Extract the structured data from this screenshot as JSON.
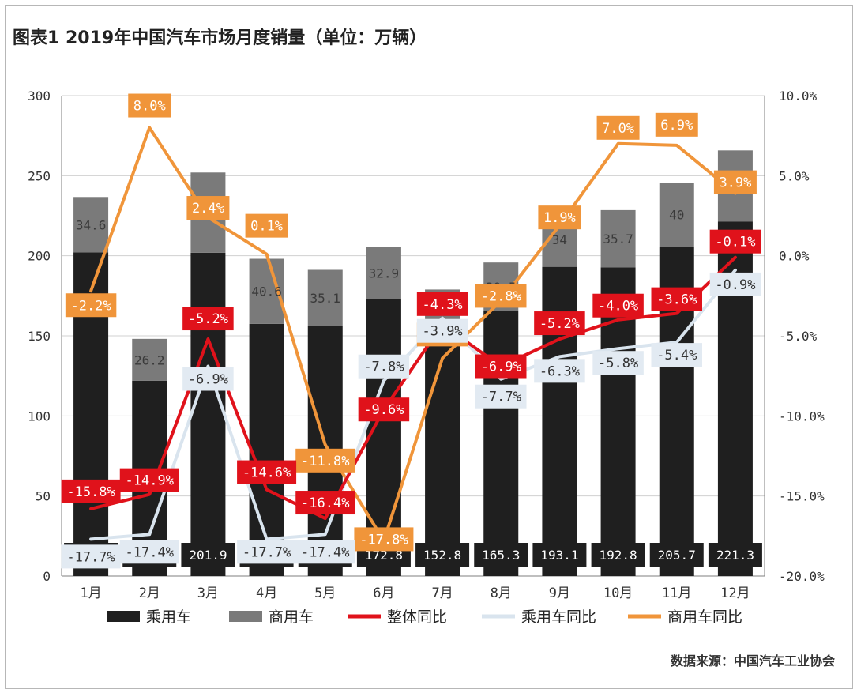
{
  "title": "图表1  2019年中国汽车市场月度销量（单位：万辆）",
  "source": "数据来源：中国汽车工业协会",
  "chart_data": {
    "type": "bar",
    "stacked": true,
    "categories": [
      "1月",
      "2月",
      "3月",
      "4月",
      "5月",
      "6月",
      "7月",
      "8月",
      "9月",
      "10月",
      "11月",
      "12月"
    ],
    "series": [
      {
        "name": "乘用车",
        "type": "bar",
        "axis": "left",
        "color": "#1f1f1f",
        "values": [
          202.1,
          121.9,
          201.9,
          157.5,
          156.1,
          172.8,
          152.8,
          165.3,
          193.1,
          192.8,
          205.7,
          221.3
        ],
        "labels": [
          "202.1",
          "121.9",
          "201.9",
          "157.5",
          "156.1",
          "172.8",
          "152.8",
          "165.3",
          "193.1",
          "192.8",
          "205.7",
          "221.3"
        ]
      },
      {
        "name": "商用车",
        "type": "bar",
        "axis": "left",
        "color": "#7a7a7a",
        "values": [
          34.6,
          26.2,
          50.1,
          40.6,
          35.1,
          32.9,
          26.1,
          30.5,
          34,
          35.7,
          40,
          44.5
        ],
        "labels": [
          "34.6",
          "26.2",
          "50.1",
          "40.6",
          "35.1",
          "32.9",
          "26.1",
          "30.5",
          "34",
          "35.7",
          "40",
          "44.5"
        ]
      },
      {
        "name": "整体同比",
        "type": "line",
        "axis": "right",
        "color": "#e0121b",
        "values": [
          -15.8,
          -14.9,
          -5.2,
          -14.6,
          -16.4,
          -9.6,
          -4.3,
          -6.9,
          -5.2,
          -4.0,
          -3.6,
          -0.1
        ],
        "labels": [
          "-15.8%",
          "-14.9%",
          "-5.2%",
          "-14.6%",
          "-16.4%",
          "-9.6%",
          "-4.3%",
          "-6.9%",
          "-5.2%",
          "-4.0%",
          "-3.6%",
          "-0.1%"
        ]
      },
      {
        "name": "乘用车同比",
        "type": "line",
        "axis": "right",
        "color": "#d9e4ee",
        "values": [
          -17.7,
          -17.4,
          -6.9,
          -17.7,
          -17.4,
          -7.8,
          -3.9,
          -7.7,
          -6.3,
          -5.8,
          -5.4,
          -0.9
        ],
        "labels": [
          "-17.7%",
          "-17.4%",
          "-6.9%",
          "-17.7%",
          "-17.4%",
          "-7.8%",
          "-3.9%",
          "-7.7%",
          "-6.3%",
          "-5.8%",
          "-5.4%",
          "-0.9%"
        ]
      },
      {
        "name": "商用车同比",
        "type": "line",
        "axis": "right",
        "color": "#f0953a",
        "values": [
          -2.2,
          8.0,
          2.4,
          0.1,
          -11.8,
          -17.8,
          -6.4,
          -2.8,
          1.9,
          7.0,
          6.9,
          3.9
        ],
        "labels": [
          "-2.2%",
          "8.0%",
          "2.4%",
          "0.1%",
          "-11.8%",
          "-17.8%",
          "-6.4%",
          "-2.8%",
          "1.9%",
          "7.0%",
          "6.9%",
          "3.9%"
        ]
      }
    ],
    "y_left": {
      "min": 0,
      "max": 300,
      "ticks": [
        "0",
        "50",
        "100",
        "150",
        "200",
        "250",
        "300"
      ]
    },
    "y_right": {
      "min": -20,
      "max": 10,
      "ticks": [
        "-20.0%",
        "-15.0%",
        "-10.0%",
        "-5.0%",
        "0.0%",
        "5.0%",
        "10.0%"
      ]
    },
    "grid": true,
    "legend_position": "bottom"
  }
}
